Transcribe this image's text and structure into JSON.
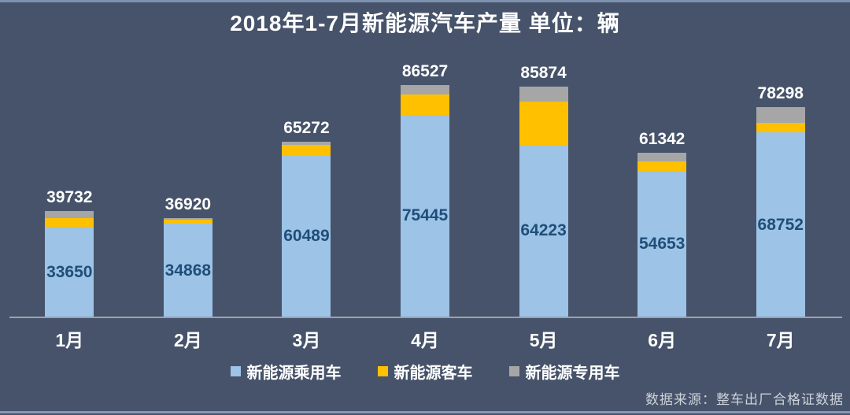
{
  "title": "2018年1-7月新能源汽车产量 单位：辆",
  "source_note": "数据来源：整车出厂合格证数据",
  "legend": [
    {
      "label": "新能源乘用车",
      "color": "#9dc3e6"
    },
    {
      "label": "新能源客车",
      "color": "#ffc000"
    },
    {
      "label": "新能源专用车",
      "color": "#a6a6a6"
    }
  ],
  "colors": {
    "background": "#46536a",
    "passenger_bar": "#9dc3e6",
    "bus_bar": "#ffc000",
    "special_bar": "#a6a6a6",
    "total_label": "#ffffff",
    "inner_label": "#1f4e79",
    "axis_line": "#99a3af",
    "edge_strip": "#8598b6"
  },
  "chart_data": {
    "type": "bar",
    "stacked": true,
    "title": "2018年1-7月新能源汽车产量 单位：辆",
    "categories": [
      "1月",
      "2月",
      "3月",
      "4月",
      "5月",
      "6月",
      "7月"
    ],
    "series": [
      {
        "name": "新能源乘用车",
        "color": "#9dc3e6",
        "values": [
          33650,
          34868,
          60489,
          75445,
          64223,
          54653,
          68752
        ],
        "values_labeled_on_chart": true
      },
      {
        "name": "新能源客车",
        "color": "#ffc000",
        "values": [
          3200,
          1500,
          3580,
          7480,
          16000,
          3390,
          3550
        ],
        "values_estimated_from_pixels": true
      },
      {
        "name": "新能源专用车",
        "color": "#a6a6a6",
        "values": [
          2882,
          552,
          1203,
          3602,
          5651,
          3299,
          5996
        ],
        "values_estimated_from_pixels": true
      }
    ],
    "totals": [
      39732,
      36920,
      65272,
      86527,
      85874,
      61342,
      78298
    ],
    "xlabel": "",
    "ylabel": "",
    "ylim": [
      0,
      90000
    ],
    "grid": false,
    "legend_position": "bottom",
    "value_labels": {
      "total_above_bar": true,
      "passenger_value_inside_bar": true
    }
  }
}
